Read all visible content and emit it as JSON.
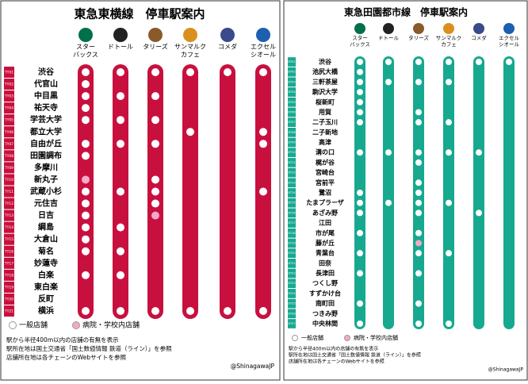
{
  "panels": [
    {
      "title": "東急東横線　停車駅案内",
      "color": "#c8103e",
      "chains": [
        [
          "スター",
          "バックス"
        ],
        [
          "ドトール"
        ],
        [
          "タリーズ"
        ],
        [
          "サンマルク",
          "カフェ"
        ],
        [
          "コメダ"
        ],
        [
          "エクセル",
          "シオール"
        ]
      ],
      "stations": [
        {
          "code": "TY01",
          "name": "渋谷",
          "shops": [
            1,
            1,
            1,
            1,
            1,
            1
          ]
        },
        {
          "code": "TY02",
          "name": "代官山",
          "shops": [
            1,
            0,
            0,
            0,
            0,
            0
          ]
        },
        {
          "code": "TY03",
          "name": "中目黒",
          "shops": [
            1,
            1,
            1,
            0,
            0,
            0
          ]
        },
        {
          "code": "TY04",
          "name": "祐天寺",
          "shops": [
            1,
            0,
            0,
            0,
            0,
            0
          ]
        },
        {
          "code": "TY05",
          "name": "学芸大学",
          "shops": [
            1,
            1,
            1,
            0,
            0,
            0
          ]
        },
        {
          "code": "TY06",
          "name": "都立大学",
          "shops": [
            0,
            0,
            0,
            1,
            0,
            1
          ]
        },
        {
          "code": "TY07",
          "name": "自由が丘",
          "shops": [
            1,
            1,
            1,
            0,
            0,
            1
          ]
        },
        {
          "code": "TY08",
          "name": "田園調布",
          "shops": [
            1,
            0,
            0,
            0,
            0,
            0
          ]
        },
        {
          "code": "TY09",
          "name": "多摩川",
          "shops": [
            0,
            0,
            0,
            0,
            0,
            0
          ]
        },
        {
          "code": "TY10",
          "name": "新丸子",
          "shops": [
            2,
            0,
            1,
            0,
            0,
            0
          ]
        },
        {
          "code": "TY11",
          "name": "武蔵小杉",
          "shops": [
            1,
            1,
            1,
            0,
            0,
            1
          ]
        },
        {
          "code": "TY12",
          "name": "元住吉",
          "shops": [
            1,
            0,
            1,
            0,
            0,
            0
          ]
        },
        {
          "code": "TY13",
          "name": "日吉",
          "shops": [
            1,
            0,
            2,
            0,
            0,
            0
          ]
        },
        {
          "code": "TY14",
          "name": "綱島",
          "shops": [
            1,
            1,
            0,
            0,
            0,
            0
          ]
        },
        {
          "code": "TY15",
          "name": "大倉山",
          "shops": [
            1,
            0,
            0,
            0,
            0,
            0
          ]
        },
        {
          "code": "TY16",
          "name": "菊名",
          "shops": [
            1,
            1,
            0,
            0,
            0,
            0
          ]
        },
        {
          "code": "TY17",
          "name": "妙蓮寺",
          "shops": [
            0,
            0,
            0,
            0,
            0,
            0
          ]
        },
        {
          "code": "TY18",
          "name": "白楽",
          "shops": [
            1,
            1,
            0,
            0,
            0,
            0
          ]
        },
        {
          "code": "TY19",
          "name": "東白楽",
          "shops": [
            0,
            0,
            0,
            0,
            0,
            0
          ]
        },
        {
          "code": "TY20",
          "name": "反町",
          "shops": [
            0,
            0,
            0,
            0,
            0,
            0
          ]
        },
        {
          "code": "TY21",
          "name": "横浜",
          "shops": [
            1,
            1,
            1,
            1,
            1,
            1
          ]
        }
      ]
    },
    {
      "title": "東急田園都市線　停車駅案内",
      "color": "#17a98f",
      "chains": [
        [
          "スター",
          "バックス"
        ],
        [
          "ドトール"
        ],
        [
          "タリーズ"
        ],
        [
          "サンマルク",
          "カフェ"
        ],
        [
          "コメダ"
        ],
        [
          "エクセル",
          "シオール"
        ]
      ],
      "stations": [
        {
          "code": "DT01",
          "name": "渋谷",
          "shops": [
            1,
            1,
            1,
            1,
            1,
            1
          ]
        },
        {
          "code": "DT02",
          "name": "池尻大橋",
          "shops": [
            1,
            0,
            0,
            0,
            0,
            0
          ]
        },
        {
          "code": "DT03",
          "name": "三軒茶屋",
          "shops": [
            1,
            1,
            1,
            1,
            0,
            0
          ]
        },
        {
          "code": "DT04",
          "name": "駒沢大学",
          "shops": [
            1,
            0,
            0,
            0,
            0,
            0
          ]
        },
        {
          "code": "DT05",
          "name": "桜新町",
          "shops": [
            1,
            0,
            0,
            0,
            0,
            0
          ]
        },
        {
          "code": "DT06",
          "name": "用賀",
          "shops": [
            1,
            0,
            1,
            0,
            0,
            0
          ]
        },
        {
          "code": "DT07",
          "name": "二子玉川",
          "shops": [
            1,
            0,
            1,
            1,
            0,
            0
          ]
        },
        {
          "code": "DT08",
          "name": "二子新地",
          "shops": [
            0,
            0,
            0,
            0,
            0,
            0
          ]
        },
        {
          "code": "DT09",
          "name": "高津",
          "shops": [
            0,
            0,
            0,
            0,
            0,
            0
          ]
        },
        {
          "code": "DT10",
          "name": "溝の口",
          "shops": [
            1,
            1,
            1,
            1,
            1,
            0
          ]
        },
        {
          "code": "DT11",
          "name": "梶が谷",
          "shops": [
            0,
            0,
            1,
            0,
            0,
            0
          ]
        },
        {
          "code": "DT12",
          "name": "宮崎台",
          "shops": [
            0,
            0,
            0,
            0,
            0,
            0
          ]
        },
        {
          "code": "DT13",
          "name": "宮前平",
          "shops": [
            0,
            0,
            1,
            0,
            0,
            0
          ]
        },
        {
          "code": "DT14",
          "name": "鷺沼",
          "shops": [
            1,
            0,
            1,
            0,
            0,
            0
          ]
        },
        {
          "code": "DT15",
          "name": "たまプラーザ",
          "shops": [
            1,
            1,
            1,
            1,
            0,
            0
          ]
        },
        {
          "code": "DT16",
          "name": "あざみ野",
          "shops": [
            1,
            0,
            1,
            0,
            1,
            0
          ]
        },
        {
          "code": "DT17",
          "name": "江田",
          "shops": [
            0,
            0,
            0,
            0,
            0,
            0
          ]
        },
        {
          "code": "DT18",
          "name": "市が尾",
          "shops": [
            1,
            0,
            1,
            0,
            0,
            0
          ]
        },
        {
          "code": "DT19",
          "name": "藤が丘",
          "shops": [
            0,
            0,
            2,
            0,
            0,
            0
          ]
        },
        {
          "code": "DT20",
          "name": "青葉台",
          "shops": [
            1,
            0,
            1,
            1,
            0,
            0
          ]
        },
        {
          "code": "DT21",
          "name": "田奈",
          "shops": [
            0,
            0,
            0,
            0,
            0,
            0
          ]
        },
        {
          "code": "DT22",
          "name": "長津田",
          "shops": [
            1,
            0,
            1,
            0,
            0,
            0
          ]
        },
        {
          "code": "DT23",
          "name": "つくし野",
          "shops": [
            0,
            0,
            0,
            0,
            0,
            0
          ]
        },
        {
          "code": "DT24",
          "name": "すずかけ台",
          "shops": [
            0,
            0,
            0,
            0,
            0,
            0
          ]
        },
        {
          "code": "DT25",
          "name": "南町田",
          "shops": [
            1,
            0,
            1,
            0,
            0,
            0
          ]
        },
        {
          "code": "DT26",
          "name": "つきみ野",
          "shops": [
            0,
            0,
            0,
            0,
            0,
            0
          ]
        },
        {
          "code": "DT27",
          "name": "中央林間",
          "shops": [
            1,
            0,
            1,
            1,
            0,
            0
          ]
        }
      ]
    }
  ],
  "legend": [
    "一般店舗",
    "病院・学校内店舗"
  ],
  "notes": [
    "駅から半径400m以内の店舗の有無を表示",
    "駅所在地は国土交通省「国土数値情報 鉄道（ライン）」を参照",
    "店舗所在地は各チェーンのWebサイトを参照"
  ],
  "credit": "@ShinagawaJP"
}
